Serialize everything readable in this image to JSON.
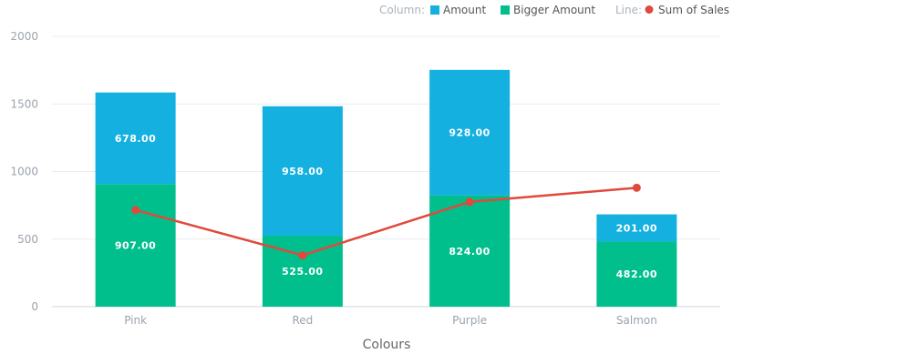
{
  "legend": {
    "column_heading": "Column:",
    "line_heading": "Line:"
  },
  "chart_data": {
    "type": "bar",
    "stacked": true,
    "categories": [
      "Pink",
      "Red",
      "Purple",
      "Salmon"
    ],
    "series": [
      {
        "name": "Bigger Amount",
        "kind": "column",
        "color": "#00bf8c",
        "values": [
          907,
          525,
          824,
          482
        ],
        "labels": [
          "907.00",
          "525.00",
          "824.00",
          "482.00"
        ]
      },
      {
        "name": "Amount",
        "kind": "column",
        "color": "#13b0e0",
        "values": [
          678,
          958,
          928,
          201
        ],
        "labels": [
          "678.00",
          "958.00",
          "928.00",
          "201.00"
        ]
      },
      {
        "name": "Sum of Sales",
        "kind": "line",
        "color": "#e0493c",
        "values": [
          715,
          380,
          775,
          880
        ]
      }
    ],
    "legend_order": [
      "Amount",
      "Bigger Amount",
      "Sum of Sales"
    ],
    "xlabel": "Colours",
    "ylabel": "",
    "ylim": [
      0,
      2000
    ],
    "yticks": [
      "0",
      "500",
      "1000",
      "1500",
      "2000"
    ],
    "grid": true,
    "legend_position": "top-right"
  }
}
